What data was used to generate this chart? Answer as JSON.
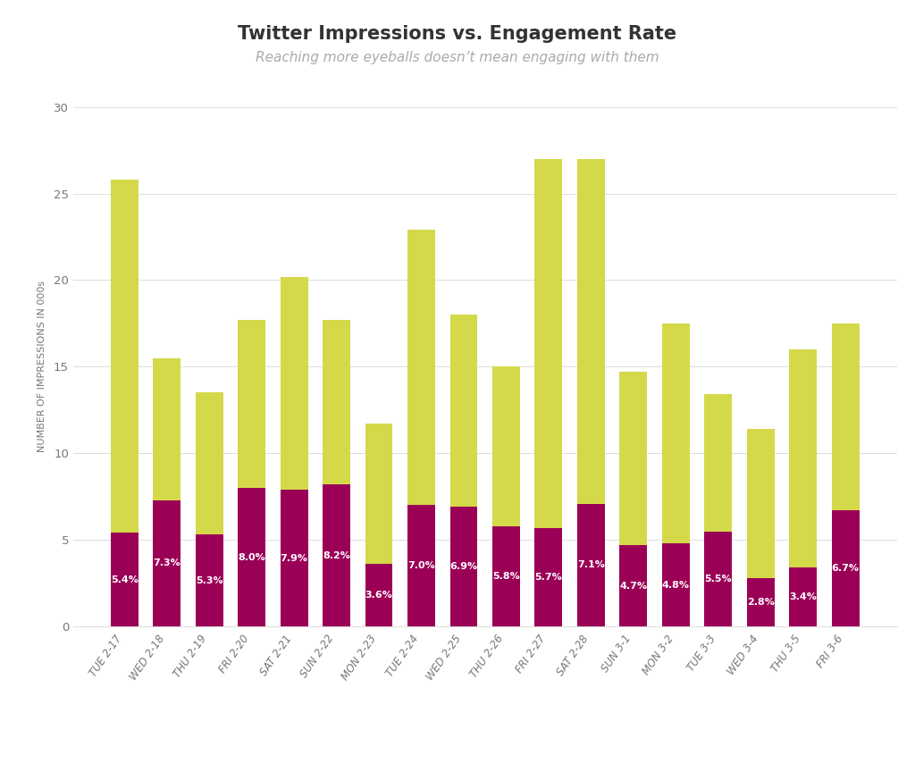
{
  "categories": [
    "TUE 2-17",
    "WED 2-18",
    "THU 2-19",
    "FRI 2-20",
    "SAT 2-21",
    "SUN 2-22",
    "MON 2-23",
    "TUE 2-24",
    "WED 2-25",
    "THU 2-26",
    "FRI 2-27",
    "SAT 2-28",
    "SUN 3-1",
    "MON 3-2",
    "TUE 3-3",
    "WED 3-4",
    "THU 3-5",
    "FRI 3-6"
  ],
  "impressions": [
    25.8,
    15.5,
    13.5,
    17.7,
    20.2,
    17.7,
    11.7,
    22.9,
    18.0,
    15.0,
    27.0,
    27.0,
    14.7,
    17.5,
    13.4,
    11.4,
    16.0,
    17.5
  ],
  "engagement_rates": [
    5.4,
    7.3,
    5.3,
    8.0,
    7.9,
    8.2,
    3.6,
    7.0,
    6.9,
    5.8,
    5.7,
    7.1,
    4.7,
    4.8,
    5.5,
    2.8,
    3.4,
    6.7
  ],
  "engagement_labels": [
    "5.4%",
    "7.3%",
    "5.3%",
    "8.0%",
    "7.9%",
    "8.2%",
    "3.6%",
    "7.0%",
    "6.9%",
    "5.8%",
    "5.7%",
    "7.1%",
    "4.7%",
    "4.8%",
    "5.5%",
    "2.8%",
    "3.4%",
    "6.7%"
  ],
  "impressions_color": "#d4d94a",
  "engagement_color": "#9b0057",
  "title": "Twitter Impressions vs. Engagement Rate",
  "subtitle": "Reaching more eyeballs doesn’t mean engaging with them",
  "ylabel": "NUMBER OF IMPRESSIONS IN 000s",
  "ylim": [
    0,
    30
  ],
  "yticks": [
    0,
    5,
    10,
    15,
    20,
    25,
    30
  ],
  "background_color": "#ffffff",
  "title_fontsize": 15,
  "subtitle_fontsize": 11,
  "ylabel_fontsize": 8,
  "tick_label_fontsize": 8.5,
  "bar_label_fontsize": 8
}
